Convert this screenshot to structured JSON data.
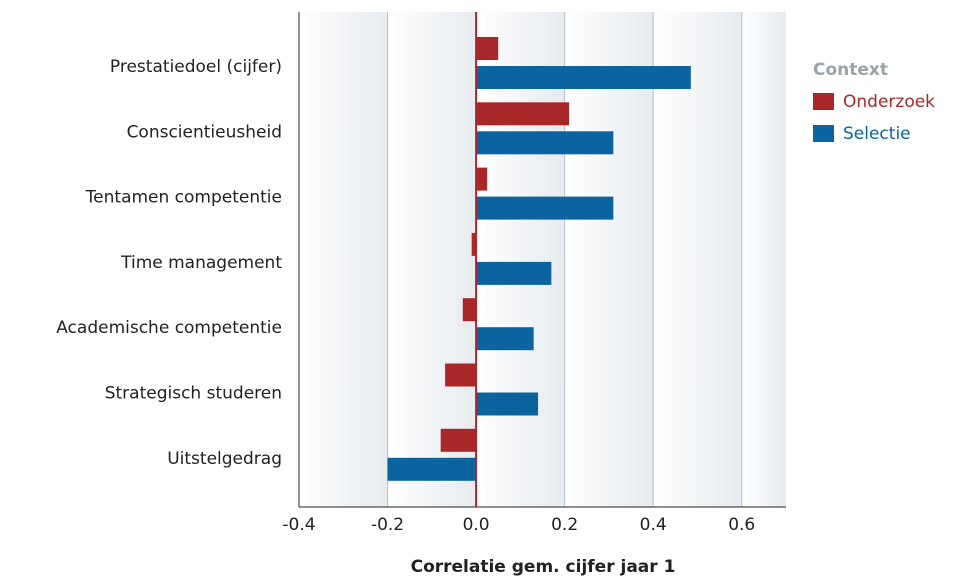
{
  "chart_data": {
    "type": "hbar",
    "xlabel": "Correlatie gem. cijfer jaar 1",
    "legend_title": "Context",
    "legend_position": "right",
    "categories": [
      "Prestatiedoel (cijfer)",
      "Conscientieusheid",
      "Tentamen competentie",
      "Time management",
      "Academische competentie",
      "Strategisch studeren",
      "Uitstelgedrag"
    ],
    "series": [
      {
        "name": "Onderzoek",
        "color": "#a8282a",
        "values": [
          0.05,
          0.21,
          0.025,
          -0.01,
          -0.03,
          -0.07,
          -0.08
        ]
      },
      {
        "name": "Selectie",
        "color": "#0b64a0",
        "values": [
          0.485,
          0.31,
          0.31,
          0.17,
          0.13,
          0.14,
          -0.2
        ]
      }
    ],
    "xlim": [
      -0.4,
      0.7
    ],
    "xticks": [
      -0.4,
      -0.2,
      {
        "value": 0,
        "label": "0.0"
      },
      0.2,
      0.4,
      0.6
    ],
    "grid": true
  }
}
